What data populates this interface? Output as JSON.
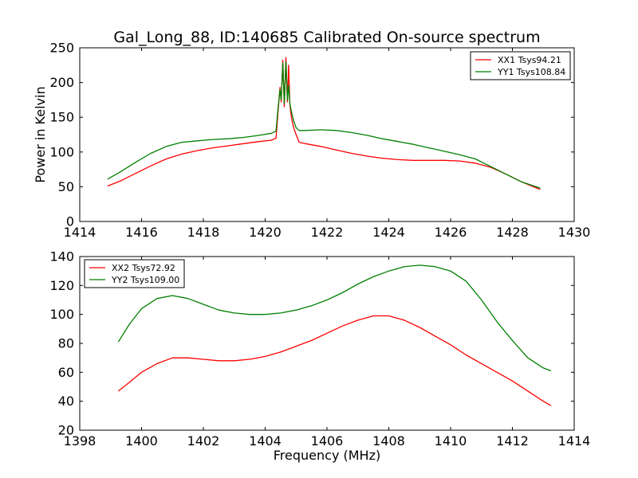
{
  "chart_data": {
    "title": "Gal_Long_88, ID:140685 Calibrated On-source spectrum",
    "xlabel": "Frequency (MHz)",
    "ylabel": "Power in Kelvin",
    "panels": [
      {
        "id": "top",
        "type": "line",
        "xlim": [
          1414,
          1430
        ],
        "ylim": [
          0,
          250
        ],
        "xticks": [
          "1414",
          "1416",
          "1418",
          "1420",
          "1422",
          "1424",
          "1426",
          "1428",
          "1430"
        ],
        "yticks": [
          "0",
          "50",
          "100",
          "150",
          "200",
          "250"
        ],
        "legend_position": "top-right",
        "series": [
          {
            "name": "XX1 Tsys94.21",
            "color": "#ff0000",
            "x": [
              1414.9,
              1415.3,
              1415.8,
              1416.3,
              1416.8,
              1417.3,
              1417.8,
              1418.3,
              1418.8,
              1419.3,
              1419.8,
              1420.2,
              1420.35,
              1420.42,
              1420.48,
              1420.52,
              1420.57,
              1420.62,
              1420.67,
              1420.72,
              1420.76,
              1420.8,
              1420.85,
              1420.92,
              1421.0,
              1421.1,
              1421.3,
              1421.8,
              1422.3,
              1422.8,
              1423.3,
              1423.8,
              1424.3,
              1424.8,
              1425.3,
              1425.8,
              1426.3,
              1426.8,
              1427.3,
              1427.8,
              1428.3,
              1428.9
            ],
            "y": [
              51,
              58,
              69,
              80,
              90,
              97,
              102,
              106,
              109,
              112,
              115,
              117,
              120,
              160,
              193,
              172,
              232,
              165,
              236,
              172,
              225,
              168,
              150,
              135,
              125,
              114,
              112,
              108,
              103,
              98,
              94,
              91,
              89,
              88,
              88,
              88,
              87,
              84,
              78,
              68,
              57,
              46
            ]
          },
          {
            "name": "YY1 Tsys108.84",
            "color": "#008000",
            "x": [
              1414.9,
              1415.3,
              1415.8,
              1416.3,
              1416.8,
              1417.3,
              1417.8,
              1418.3,
              1418.8,
              1419.3,
              1419.8,
              1420.2,
              1420.35,
              1420.42,
              1420.48,
              1420.52,
              1420.57,
              1420.62,
              1420.67,
              1420.72,
              1420.76,
              1420.8,
              1420.85,
              1420.92,
              1421.0,
              1421.1,
              1421.3,
              1421.8,
              1422.3,
              1422.8,
              1423.3,
              1423.8,
              1424.3,
              1424.8,
              1425.3,
              1425.8,
              1426.3,
              1426.8,
              1427.3,
              1427.8,
              1428.3,
              1428.9
            ],
            "y": [
              61,
              71,
              85,
              98,
              108,
              114,
              116,
              118,
              119,
              121,
              124,
              127,
              130,
              165,
              190,
              175,
              228,
              170,
              230,
              175,
              196,
              170,
              158,
              145,
              135,
              131,
              131,
              132,
              131,
              128,
              124,
              119,
              115,
              111,
              106,
              101,
              96,
              90,
              79,
              68,
              57,
              48
            ]
          }
        ]
      },
      {
        "id": "bottom",
        "type": "line",
        "xlim": [
          1398,
          1414
        ],
        "ylim": [
          20,
          140
        ],
        "xticks": [
          "1398",
          "1400",
          "1402",
          "1404",
          "1406",
          "1408",
          "1410",
          "1412",
          "1414"
        ],
        "yticks": [
          "20",
          "40",
          "60",
          "80",
          "100",
          "120",
          "140"
        ],
        "legend_position": "top-left",
        "series": [
          {
            "name": "XX2 Tsys72.92",
            "color": "#ff0000",
            "x": [
              1399.25,
              1399.6,
              1400.0,
              1400.5,
              1401.0,
              1401.5,
              1402.0,
              1402.5,
              1403.0,
              1403.5,
              1404.0,
              1404.5,
              1405.0,
              1405.5,
              1406.0,
              1406.5,
              1407.0,
              1407.5,
              1408.0,
              1408.5,
              1409.0,
              1409.5,
              1410.0,
              1410.5,
              1411.0,
              1411.5,
              1412.0,
              1412.5,
              1413.0,
              1413.25
            ],
            "y": [
              47,
              53,
              60,
              66,
              70,
              70,
              69,
              68,
              68,
              69,
              71,
              74,
              78,
              82,
              87,
              92,
              96,
              99,
              99,
              96,
              91,
              85,
              79,
              72,
              66,
              60,
              54,
              47,
              40,
              37
            ]
          },
          {
            "name": "YY2 Tsys109.00",
            "color": "#008000",
            "x": [
              1399.25,
              1399.6,
              1400.0,
              1400.5,
              1401.0,
              1401.5,
              1402.0,
              1402.5,
              1403.0,
              1403.5,
              1404.0,
              1404.5,
              1405.0,
              1405.5,
              1406.0,
              1406.5,
              1407.0,
              1407.5,
              1408.0,
              1408.5,
              1409.0,
              1409.5,
              1410.0,
              1410.5,
              1411.0,
              1411.5,
              1412.0,
              1412.5,
              1413.0,
              1413.25
            ],
            "y": [
              81,
              93,
              104,
              111,
              113,
              111,
              107,
              103,
              101,
              100,
              100,
              101,
              103,
              106,
              110,
              115,
              121,
              126,
              130,
              133,
              134,
              133,
              130,
              123,
              110,
              95,
              82,
              70,
              63,
              61
            ]
          }
        ]
      }
    ]
  }
}
